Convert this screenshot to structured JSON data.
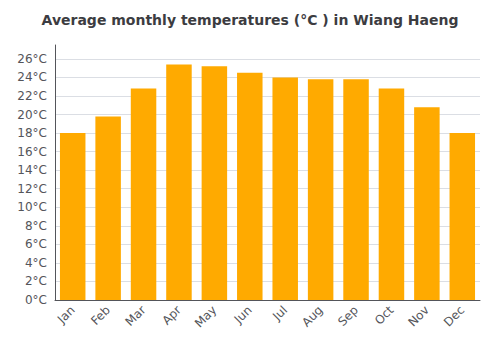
{
  "chart_data": {
    "type": "bar",
    "title": "Average monthly temperatures (°C ) in Wiang Haeng",
    "categories": [
      "Jan",
      "Feb",
      "Mar",
      "Apr",
      "May",
      "Jun",
      "Jul",
      "Aug",
      "Sep",
      "Oct",
      "Nov",
      "Dec"
    ],
    "values": [
      18.0,
      19.8,
      22.8,
      25.4,
      25.2,
      24.5,
      24.0,
      23.8,
      23.8,
      22.8,
      20.8,
      18.0
    ],
    "color": "#FFAA00",
    "ylim": [
      0,
      27.5
    ],
    "yticks": [
      {
        "value": 0,
        "label": "0°C"
      },
      {
        "value": 2,
        "label": "2°C"
      },
      {
        "value": 4,
        "label": "4°C"
      },
      {
        "value": 6,
        "label": "6°C"
      },
      {
        "value": 8,
        "label": "8°C"
      },
      {
        "value": 10,
        "label": "10°C"
      },
      {
        "value": 12,
        "label": "12°C"
      },
      {
        "value": 14,
        "label": "14°C"
      },
      {
        "value": 16,
        "label": "16°C"
      },
      {
        "value": 18,
        "label": "18°C"
      },
      {
        "value": 20,
        "label": "20°C"
      },
      {
        "value": 22,
        "label": "22°C"
      },
      {
        "value": 24,
        "label": "24°C"
      },
      {
        "value": 26,
        "label": "26°C"
      }
    ],
    "grid": true
  }
}
